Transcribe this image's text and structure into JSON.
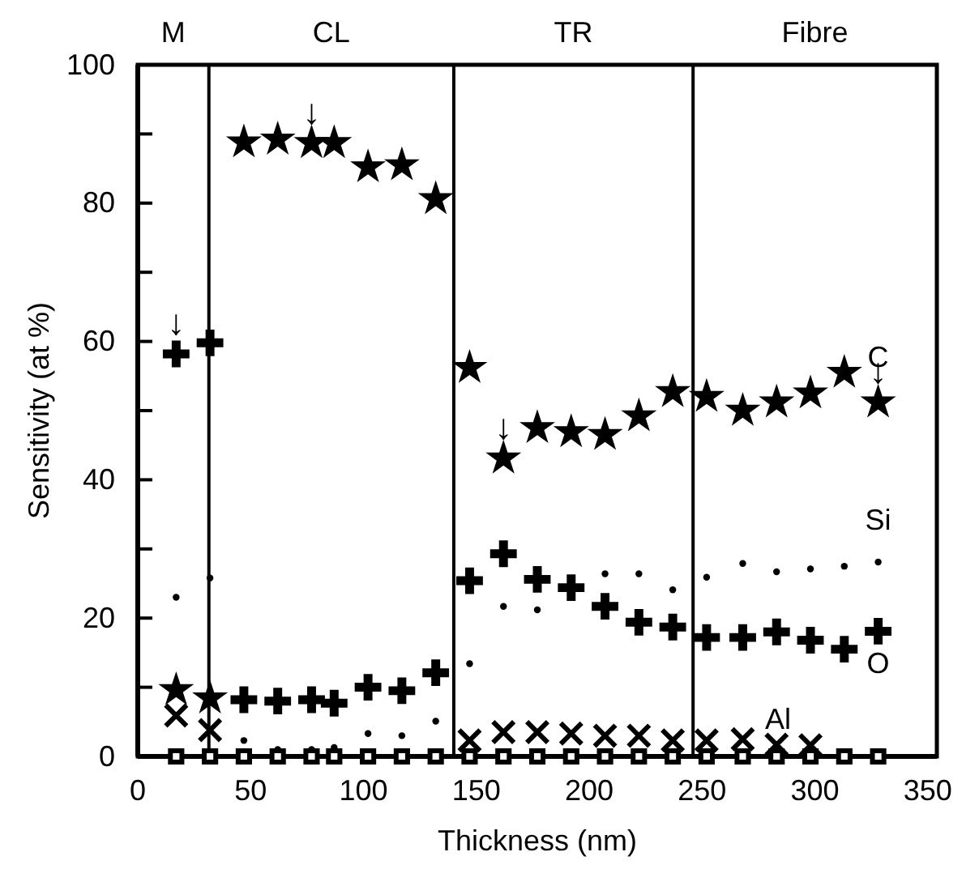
{
  "chart_data": {
    "type": "scatter",
    "xlabel": "Thickness (nm)",
    "ylabel": "Sensitivity (at %)",
    "xlim": [
      0,
      354
    ],
    "ylim": [
      0,
      100
    ],
    "xticks": [
      0,
      50,
      100,
      150,
      200,
      250,
      300,
      350
    ],
    "yticks": [
      0,
      {
        "value": 10,
        "label": null
      },
      20,
      {
        "value": 30,
        "label": null
      },
      40,
      {
        "value": 50,
        "label": null
      },
      60,
      {
        "value": 70,
        "label": null
      },
      80,
      {
        "value": 90,
        "label": null
      },
      100
    ],
    "x": [
      17,
      32,
      47,
      62,
      77,
      87,
      102,
      117,
      132,
      147,
      162,
      177,
      192,
      207,
      222,
      237,
      252,
      268,
      283,
      298,
      313,
      328
    ],
    "series": [
      {
        "name": "C",
        "color": "#000000",
        "marker": "star",
        "values": [
          9.6,
          8.4,
          88.8,
          89.2,
          88.7,
          88.7,
          85.2,
          85.5,
          80.6,
          56.2,
          43.1,
          47.5,
          46.9,
          46.5,
          49.2,
          52.7,
          52,
          50,
          51.2,
          52.5,
          55.5,
          51.2
        ]
      },
      {
        "name": "Si",
        "color": "#000000",
        "marker": "circle",
        "values": [
          23,
          25.8,
          2.3,
          1,
          1,
          1.3,
          3.3,
          3,
          5.1,
          13.4,
          21.7,
          21.2,
          null,
          26.4,
          26.4,
          24.1,
          25.9,
          27.9,
          26.7,
          27.1,
          27.5,
          28.1
        ]
      },
      {
        "name": "O",
        "color": "#000000",
        "marker": "cross",
        "values": [
          58.2,
          59.8,
          8.2,
          8,
          8.2,
          7.7,
          10,
          9.5,
          12.1,
          25.4,
          29.3,
          25.6,
          24.4,
          21.7,
          19.4,
          18.7,
          17.2,
          17.2,
          18,
          16.8,
          15.5,
          18.1
        ]
      },
      {
        "name": "Al",
        "color": "#000000",
        "marker": "x",
        "values": [
          5.9,
          3.8,
          null,
          null,
          null,
          null,
          null,
          null,
          null,
          2.3,
          3.5,
          3.5,
          3.3,
          3,
          3,
          2.3,
          2.3,
          2.5,
          1.7,
          1.6,
          null,
          null
        ]
      },
      {
        "color": "#000000",
        "marker": "square",
        "values": [
          0,
          0,
          0,
          0,
          0,
          0,
          0,
          0,
          0,
          0,
          0,
          0,
          0,
          0,
          0,
          0,
          0,
          0,
          0,
          0,
          0,
          0
        ]
      }
    ],
    "ref_lines": [
      {
        "axis": "x",
        "value": 31.5
      },
      {
        "axis": "x",
        "value": 140
      },
      {
        "axis": "x",
        "value": 246
      }
    ],
    "annotations": [
      "M",
      "CL",
      "TR",
      "Fibre",
      {
        "text": "↓",
        "x": 17,
        "y": 58.2
      },
      {
        "text": "↓",
        "x": 77,
        "y": 88.7
      },
      {
        "text": "↓",
        "x": 162,
        "y": 43.1
      },
      {
        "text": "↓",
        "x": 328,
        "y": 51.2
      }
    ],
    "grid": false
  }
}
